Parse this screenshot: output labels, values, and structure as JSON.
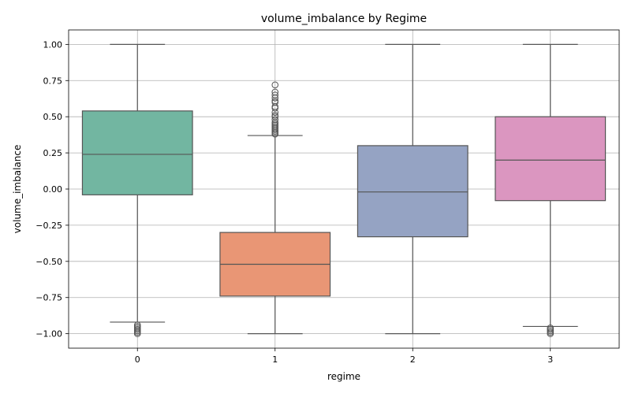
{
  "chart_data": {
    "type": "box",
    "title": "volume_imbalance by Regime",
    "xlabel": "regime",
    "ylabel": "volume_imbalance",
    "ylim": [
      -1.1,
      1.1
    ],
    "yticks": [
      1.0,
      0.75,
      0.5,
      0.25,
      0.0,
      -0.25,
      -0.5,
      -0.75,
      -1.0
    ],
    "ytick_labels": [
      "1.00",
      "0.75",
      "0.50",
      "0.25",
      "0.00",
      "−0.25",
      "−0.50",
      "−0.75",
      "−1.00"
    ],
    "grid": true,
    "categories": [
      "0",
      "1",
      "2",
      "3"
    ],
    "boxes": [
      {
        "category": "0",
        "color": "#72b6a1",
        "whisker_low": -0.92,
        "q1": -0.04,
        "median": 0.24,
        "q3": 0.54,
        "whisker_high": 1.0,
        "outliers": [
          -0.94,
          -0.95,
          -0.96,
          -0.97,
          -0.98,
          -0.99,
          -1.0
        ]
      },
      {
        "category": "1",
        "color": "#e99675",
        "whisker_low": -1.0,
        "q1": -0.74,
        "median": -0.52,
        "q3": -0.3,
        "whisker_high": 0.37,
        "outliers": [
          0.38,
          0.39,
          0.4,
          0.41,
          0.42,
          0.43,
          0.44,
          0.45,
          0.46,
          0.48,
          0.5,
          0.51,
          0.53,
          0.56,
          0.57,
          0.6,
          0.61,
          0.63,
          0.65,
          0.67,
          0.72
        ]
      },
      {
        "category": "2",
        "color": "#95a3c3",
        "whisker_low": -1.0,
        "q1": -0.33,
        "median": -0.02,
        "q3": 0.3,
        "whisker_high": 1.0,
        "outliers": []
      },
      {
        "category": "3",
        "color": "#db96c0",
        "whisker_low": -0.95,
        "q1": -0.08,
        "median": 0.2,
        "q3": 0.5,
        "whisker_high": 1.0,
        "outliers": [
          -0.96,
          -0.97,
          -0.98,
          -0.99,
          -1.0
        ]
      }
    ]
  }
}
